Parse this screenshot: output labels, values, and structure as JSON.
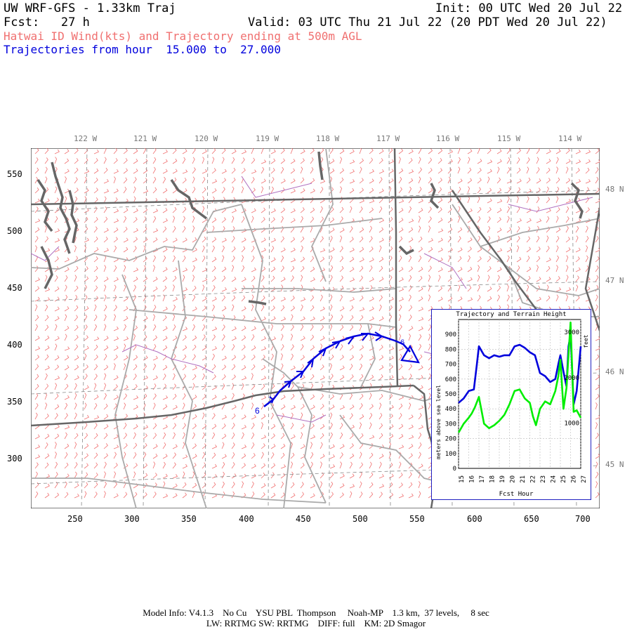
{
  "header": {
    "title_left": "UW WRF-GFS - 1.33km Traj",
    "init": "Init: 00 UTC Wed 20 Jul 22",
    "fcst": "Fcst:   27 h",
    "valid": "Valid: 03 UTC Thu 21 Jul 22 (20 PDT Wed 20 Jul 22)",
    "subtitle": "Hatwai ID Wind(kts) and Trajectory ending at 500m AGL",
    "traj_range": "Trajectories from hour  15.000 to  27.000"
  },
  "map": {
    "lon_labels": [
      "122 W",
      "121 W",
      "120 W",
      "119 W",
      "118 W",
      "117 W",
      "116 W",
      "115 W",
      "114 W"
    ],
    "lat_labels": [
      "48 N",
      "47 N",
      "46 N",
      "45 N"
    ],
    "x_ticks": [
      "250",
      "300",
      "350",
      "400",
      "450",
      "500",
      "550",
      "600",
      "650",
      "700"
    ],
    "y_ticks": [
      "550",
      "500",
      "450",
      "400",
      "350",
      "300"
    ],
    "colors": {
      "wind_barbs": "#f07070",
      "trajectory": "#0000dd",
      "borders": "#666666",
      "counties": "#aaaaaa",
      "rivers": "#b070c0"
    },
    "start_marker": "6",
    "end_marker": "6"
  },
  "inset": {
    "title": "Trajectory and Terrain Height",
    "ylabel_left": "meters above sea level",
    "ylabel_right": "feet",
    "xlabel": "Fcst Hour",
    "y_ticks_m": [
      "0",
      "100",
      "200",
      "300",
      "400",
      "500",
      "600",
      "700",
      "800",
      "900"
    ],
    "y_ticks_ft": [
      "1000",
      "2000",
      "3000"
    ],
    "x_ticks": [
      "15",
      "16",
      "17",
      "18",
      "19",
      "20",
      "21",
      "22",
      "23",
      "24",
      "25",
      "26",
      "27"
    ]
  },
  "chart_data": {
    "type": "line",
    "title": "Trajectory and Terrain Height",
    "xlabel": "Fcst Hour",
    "ylabel": "meters above sea level",
    "xlim": [
      15,
      27
    ],
    "ylim": [
      0,
      1000
    ],
    "series": [
      {
        "name": "",
        "color": "#0000dd",
        "x": [
          15,
          15.5,
          16,
          16.5,
          16.8,
          17,
          17.5,
          18,
          18.5,
          19,
          19.5,
          20,
          20.5,
          21,
          21.5,
          22,
          22.5,
          23,
          23.5,
          24,
          24.5,
          24.8,
          25,
          25.3,
          25.6,
          25.8,
          26,
          26.3,
          26.6,
          27
        ],
        "y": [
          440,
          470,
          520,
          530,
          700,
          820,
          760,
          740,
          760,
          750,
          760,
          760,
          820,
          830,
          810,
          780,
          760,
          640,
          620,
          580,
          600,
          700,
          760,
          650,
          550,
          820,
          900,
          430,
          520,
          820
        ]
      },
      {
        "name": "",
        "color": "#00ee00",
        "x": [
          15,
          15.5,
          16,
          16.3,
          16.6,
          17,
          17.5,
          18,
          18.5,
          19,
          19.5,
          20,
          20.5,
          21,
          21.5,
          22,
          22.3,
          22.6,
          23,
          23.5,
          24,
          24.5,
          24.8,
          25,
          25.3,
          25.6,
          25.8,
          26,
          26.3,
          26.6,
          27
        ],
        "y": [
          240,
          300,
          340,
          370,
          410,
          480,
          300,
          270,
          290,
          320,
          360,
          430,
          520,
          530,
          470,
          440,
          350,
          290,
          400,
          450,
          430,
          520,
          620,
          730,
          400,
          540,
          760,
          980,
          380,
          390,
          340
        ]
      }
    ]
  },
  "footer": {
    "line1": "Model Info: V4.1.3    No Cu    YSU PBL  Thompson     Noah-MP    1.3 km,  37 levels,     8 sec",
    "line2": "LW: RRTMG SW: RRTMG    DIFF: full    KM: 2D Smagor"
  }
}
